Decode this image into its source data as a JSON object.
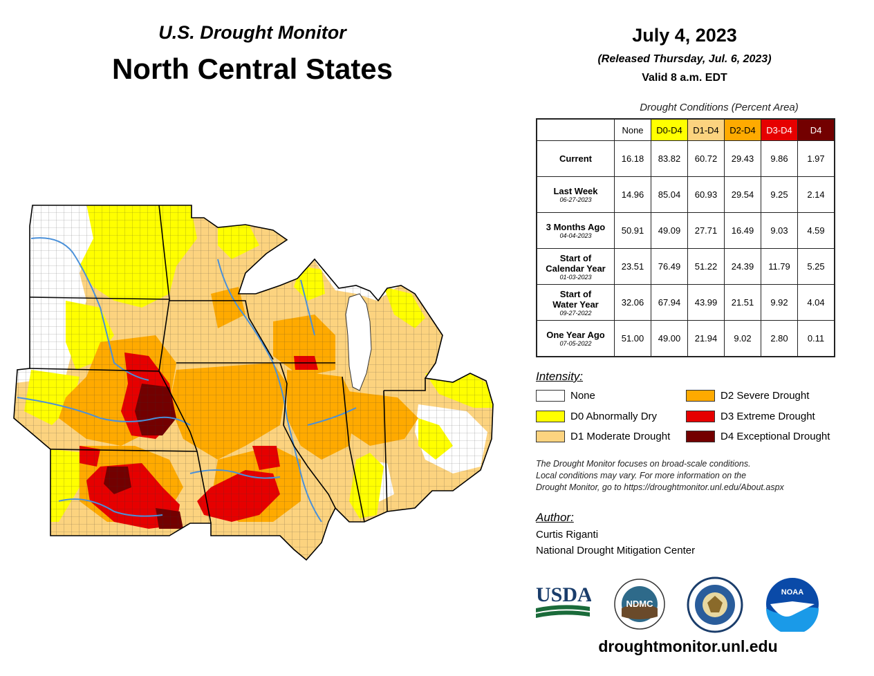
{
  "header": {
    "line1": "U.S. Drought Monitor",
    "line2": "North Central States",
    "date": "July 4, 2023",
    "released": "(Released Thursday, Jul. 6, 2023)",
    "valid": "Valid 8 a.m. EDT"
  },
  "table": {
    "caption": "Drought Conditions (Percent Area)",
    "columns": [
      "None",
      "D0-D4",
      "D1-D4",
      "D2-D4",
      "D3-D4",
      "D4"
    ],
    "rows": [
      {
        "label": "Current",
        "sub": "",
        "values": [
          "16.18",
          "83.82",
          "60.72",
          "29.43",
          "9.86",
          "1.97"
        ]
      },
      {
        "label": "Last Week",
        "sub": "06-27-2023",
        "values": [
          "14.96",
          "85.04",
          "60.93",
          "29.54",
          "9.25",
          "2.14"
        ]
      },
      {
        "label": "3 Months Ago",
        "sub": "04-04-2023",
        "values": [
          "50.91",
          "49.09",
          "27.71",
          "16.49",
          "9.03",
          "4.59"
        ]
      },
      {
        "label": "Start of Calendar Year",
        "sub": "01-03-2023",
        "values": [
          "23.51",
          "76.49",
          "51.22",
          "24.39",
          "11.79",
          "5.25"
        ]
      },
      {
        "label": "Start of Water Year",
        "sub": "09-27-2022",
        "values": [
          "32.06",
          "67.94",
          "43.99",
          "21.51",
          "9.92",
          "4.04"
        ]
      },
      {
        "label": "One Year Ago",
        "sub": "07-05-2022",
        "values": [
          "51.00",
          "49.00",
          "21.94",
          "9.02",
          "2.80",
          "0.11"
        ]
      }
    ]
  },
  "legend": {
    "title": "Intensity:",
    "items": [
      {
        "label": "None",
        "color": "#ffffff"
      },
      {
        "label": "D0 Abnormally Dry",
        "color": "#ffff00"
      },
      {
        "label": "D1 Moderate Drought",
        "color": "#fcd37f"
      },
      {
        "label": "D2 Severe Drought",
        "color": "#ffaa00"
      },
      {
        "label": "D3 Extreme Drought",
        "color": "#e60000"
      },
      {
        "label": "D4 Exceptional Drought",
        "color": "#730000"
      }
    ]
  },
  "note": {
    "line1": "The Drought Monitor focuses on broad-scale conditions.",
    "line2": "Local conditions may vary. For more information on the",
    "line3": "Drought Monitor, go to https://droughtmonitor.unl.edu/About.aspx"
  },
  "author": {
    "title": "Author:",
    "name": "Curtis Riganti",
    "org": "National Drought Mitigation Center"
  },
  "logos": {
    "usda": "USDA",
    "ndmc": "NDMC",
    "noaa": "NOAA"
  },
  "footer": {
    "url": "droughtmonitor.unl.edu"
  }
}
